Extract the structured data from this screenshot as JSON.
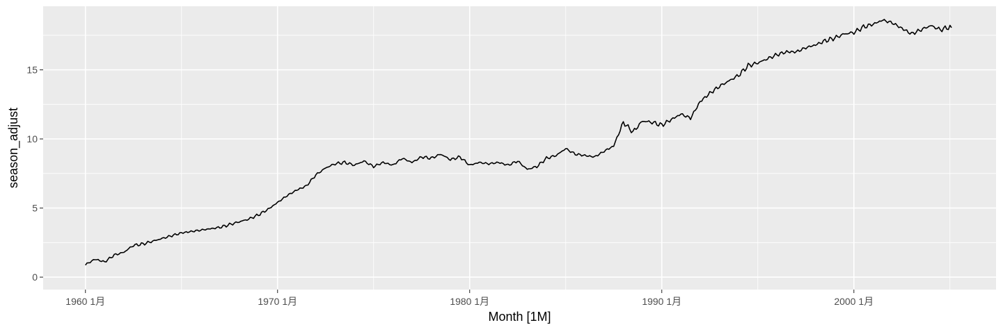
{
  "chart_data": {
    "type": "line",
    "title": "",
    "xlabel": "Month [1M]",
    "ylabel": "season_adjust",
    "x_ticks": [
      "1960 1月",
      "1970 1月",
      "1980 1月",
      "1990 1月",
      "2000 1月"
    ],
    "y_ticks": [
      "0",
      "5",
      "10",
      "15"
    ],
    "xlim": [
      1957.8,
      2007.4
    ],
    "ylim": [
      -0.9,
      19.6
    ],
    "grid": true,
    "legend": "none",
    "colors": {
      "panel": "#ebebeb",
      "grid": "#ffffff",
      "line": "#000000",
      "tick_text": "#4d4d4d"
    },
    "series": [
      {
        "x": [
          1960.0,
          1960.5,
          1961.0,
          1961.5,
          1962.0,
          1962.5,
          1963.0,
          1963.5,
          1964.0,
          1964.5,
          1965.0,
          1965.5,
          1966.0,
          1966.5,
          1967.0,
          1967.5,
          1968.0,
          1968.5,
          1969.0,
          1969.5,
          1970.0,
          1970.5,
          1971.0,
          1971.5,
          1972.0,
          1972.5,
          1973.0,
          1973.5,
          1974.0,
          1974.5,
          1975.0,
          1975.5,
          1976.0,
          1976.5,
          1977.0,
          1977.5,
          1978.0,
          1978.5,
          1979.0,
          1979.5,
          1980.0,
          1980.5,
          1981.0,
          1981.5,
          1982.0,
          1982.5,
          1983.0,
          1983.5,
          1984.0,
          1984.5,
          1985.0,
          1985.5,
          1986.0,
          1986.5,
          1987.0,
          1987.5,
          1988.0,
          1988.5,
          1989.0,
          1989.5,
          1990.0,
          1990.5,
          1991.0,
          1991.5,
          1992.0,
          1992.5,
          1993.0,
          1993.5,
          1994.0,
          1994.5,
          1995.0,
          1995.5,
          1996.0,
          1996.5,
          1997.0,
          1997.5,
          1998.0,
          1998.5,
          1999.0,
          1999.5,
          2000.0,
          2000.5,
          2001.0,
          2001.5,
          2002.0,
          2002.5,
          2003.0,
          2003.5,
          2004.0,
          2004.5,
          2005.0,
          2005.1
        ],
        "y": [
          0.9,
          1.3,
          1.1,
          1.6,
          1.8,
          2.3,
          2.4,
          2.6,
          2.8,
          3.0,
          3.2,
          3.3,
          3.4,
          3.5,
          3.6,
          3.8,
          4.0,
          4.2,
          4.5,
          4.9,
          5.4,
          5.9,
          6.3,
          6.6,
          7.4,
          7.9,
          8.2,
          8.3,
          8.1,
          8.4,
          8.0,
          8.3,
          8.1,
          8.6,
          8.3,
          8.7,
          8.6,
          8.9,
          8.5,
          8.7,
          8.1,
          8.3,
          8.2,
          8.3,
          8.1,
          8.4,
          7.8,
          8.0,
          8.6,
          8.8,
          9.3,
          8.9,
          8.8,
          8.7,
          9.1,
          9.5,
          11.2,
          10.5,
          11.3,
          11.2,
          11.0,
          11.4,
          11.8,
          11.5,
          12.7,
          13.3,
          13.8,
          14.2,
          14.6,
          15.3,
          15.5,
          15.8,
          16.1,
          16.3,
          16.3,
          16.6,
          16.8,
          17.1,
          17.3,
          17.6,
          17.7,
          18.1,
          18.3,
          18.6,
          18.4,
          18.0,
          17.6,
          17.9,
          18.2,
          17.9,
          18.1,
          17.9
        ]
      }
    ]
  }
}
